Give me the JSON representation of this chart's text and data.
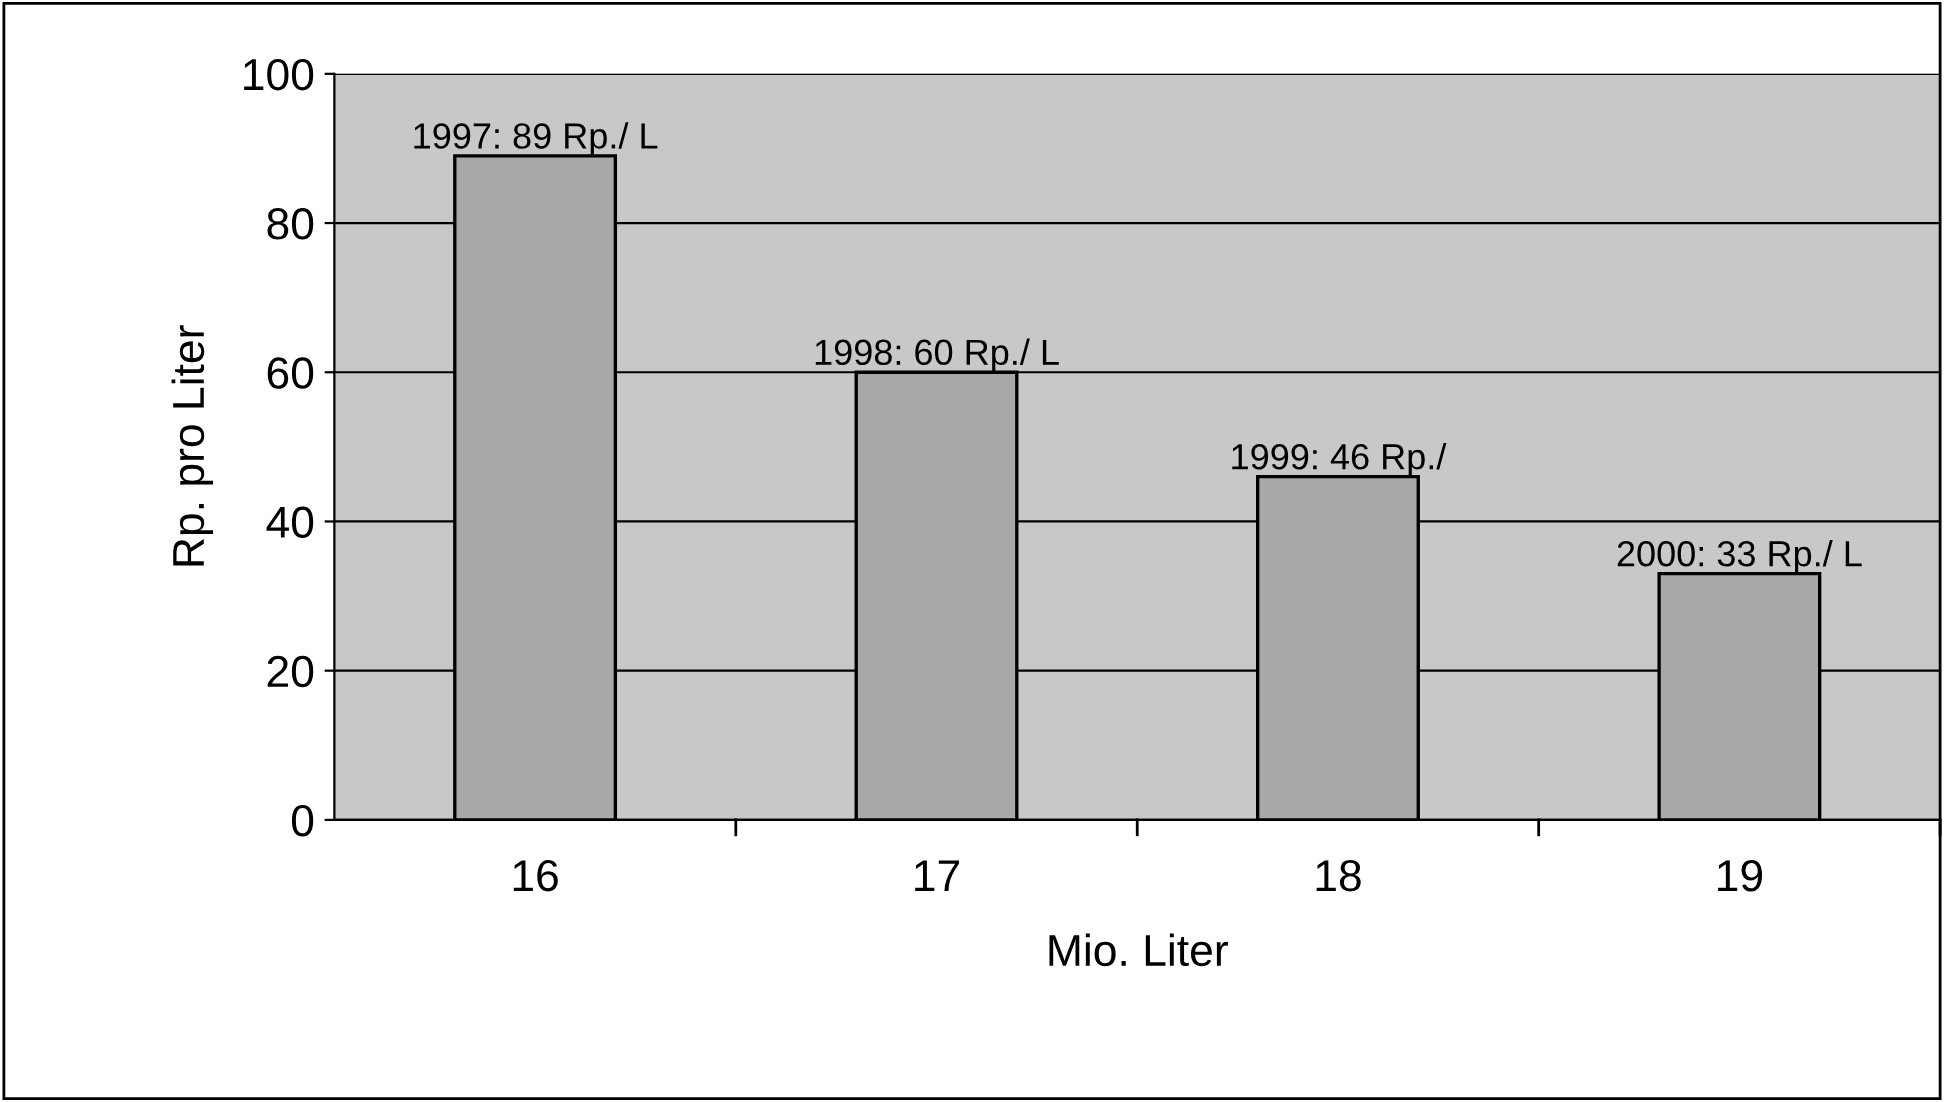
{
  "chart_data": {
    "type": "bar",
    "xlabel": "Mio. Liter",
    "ylabel": "Rp. pro Liter",
    "categories": [
      "16",
      "17",
      "18",
      "19"
    ],
    "values": [
      89,
      60,
      46,
      33
    ],
    "value_labels": [
      "1997: 89 Rp./ L",
      "1998: 60 Rp./ L",
      "1999: 46 Rp./",
      "2000: 33 Rp./ L"
    ],
    "color": "#a8a8a8",
    "ylim": [
      0,
      100
    ],
    "yticks": [
      0,
      20,
      40,
      60,
      80,
      100
    ],
    "grid": "y"
  }
}
